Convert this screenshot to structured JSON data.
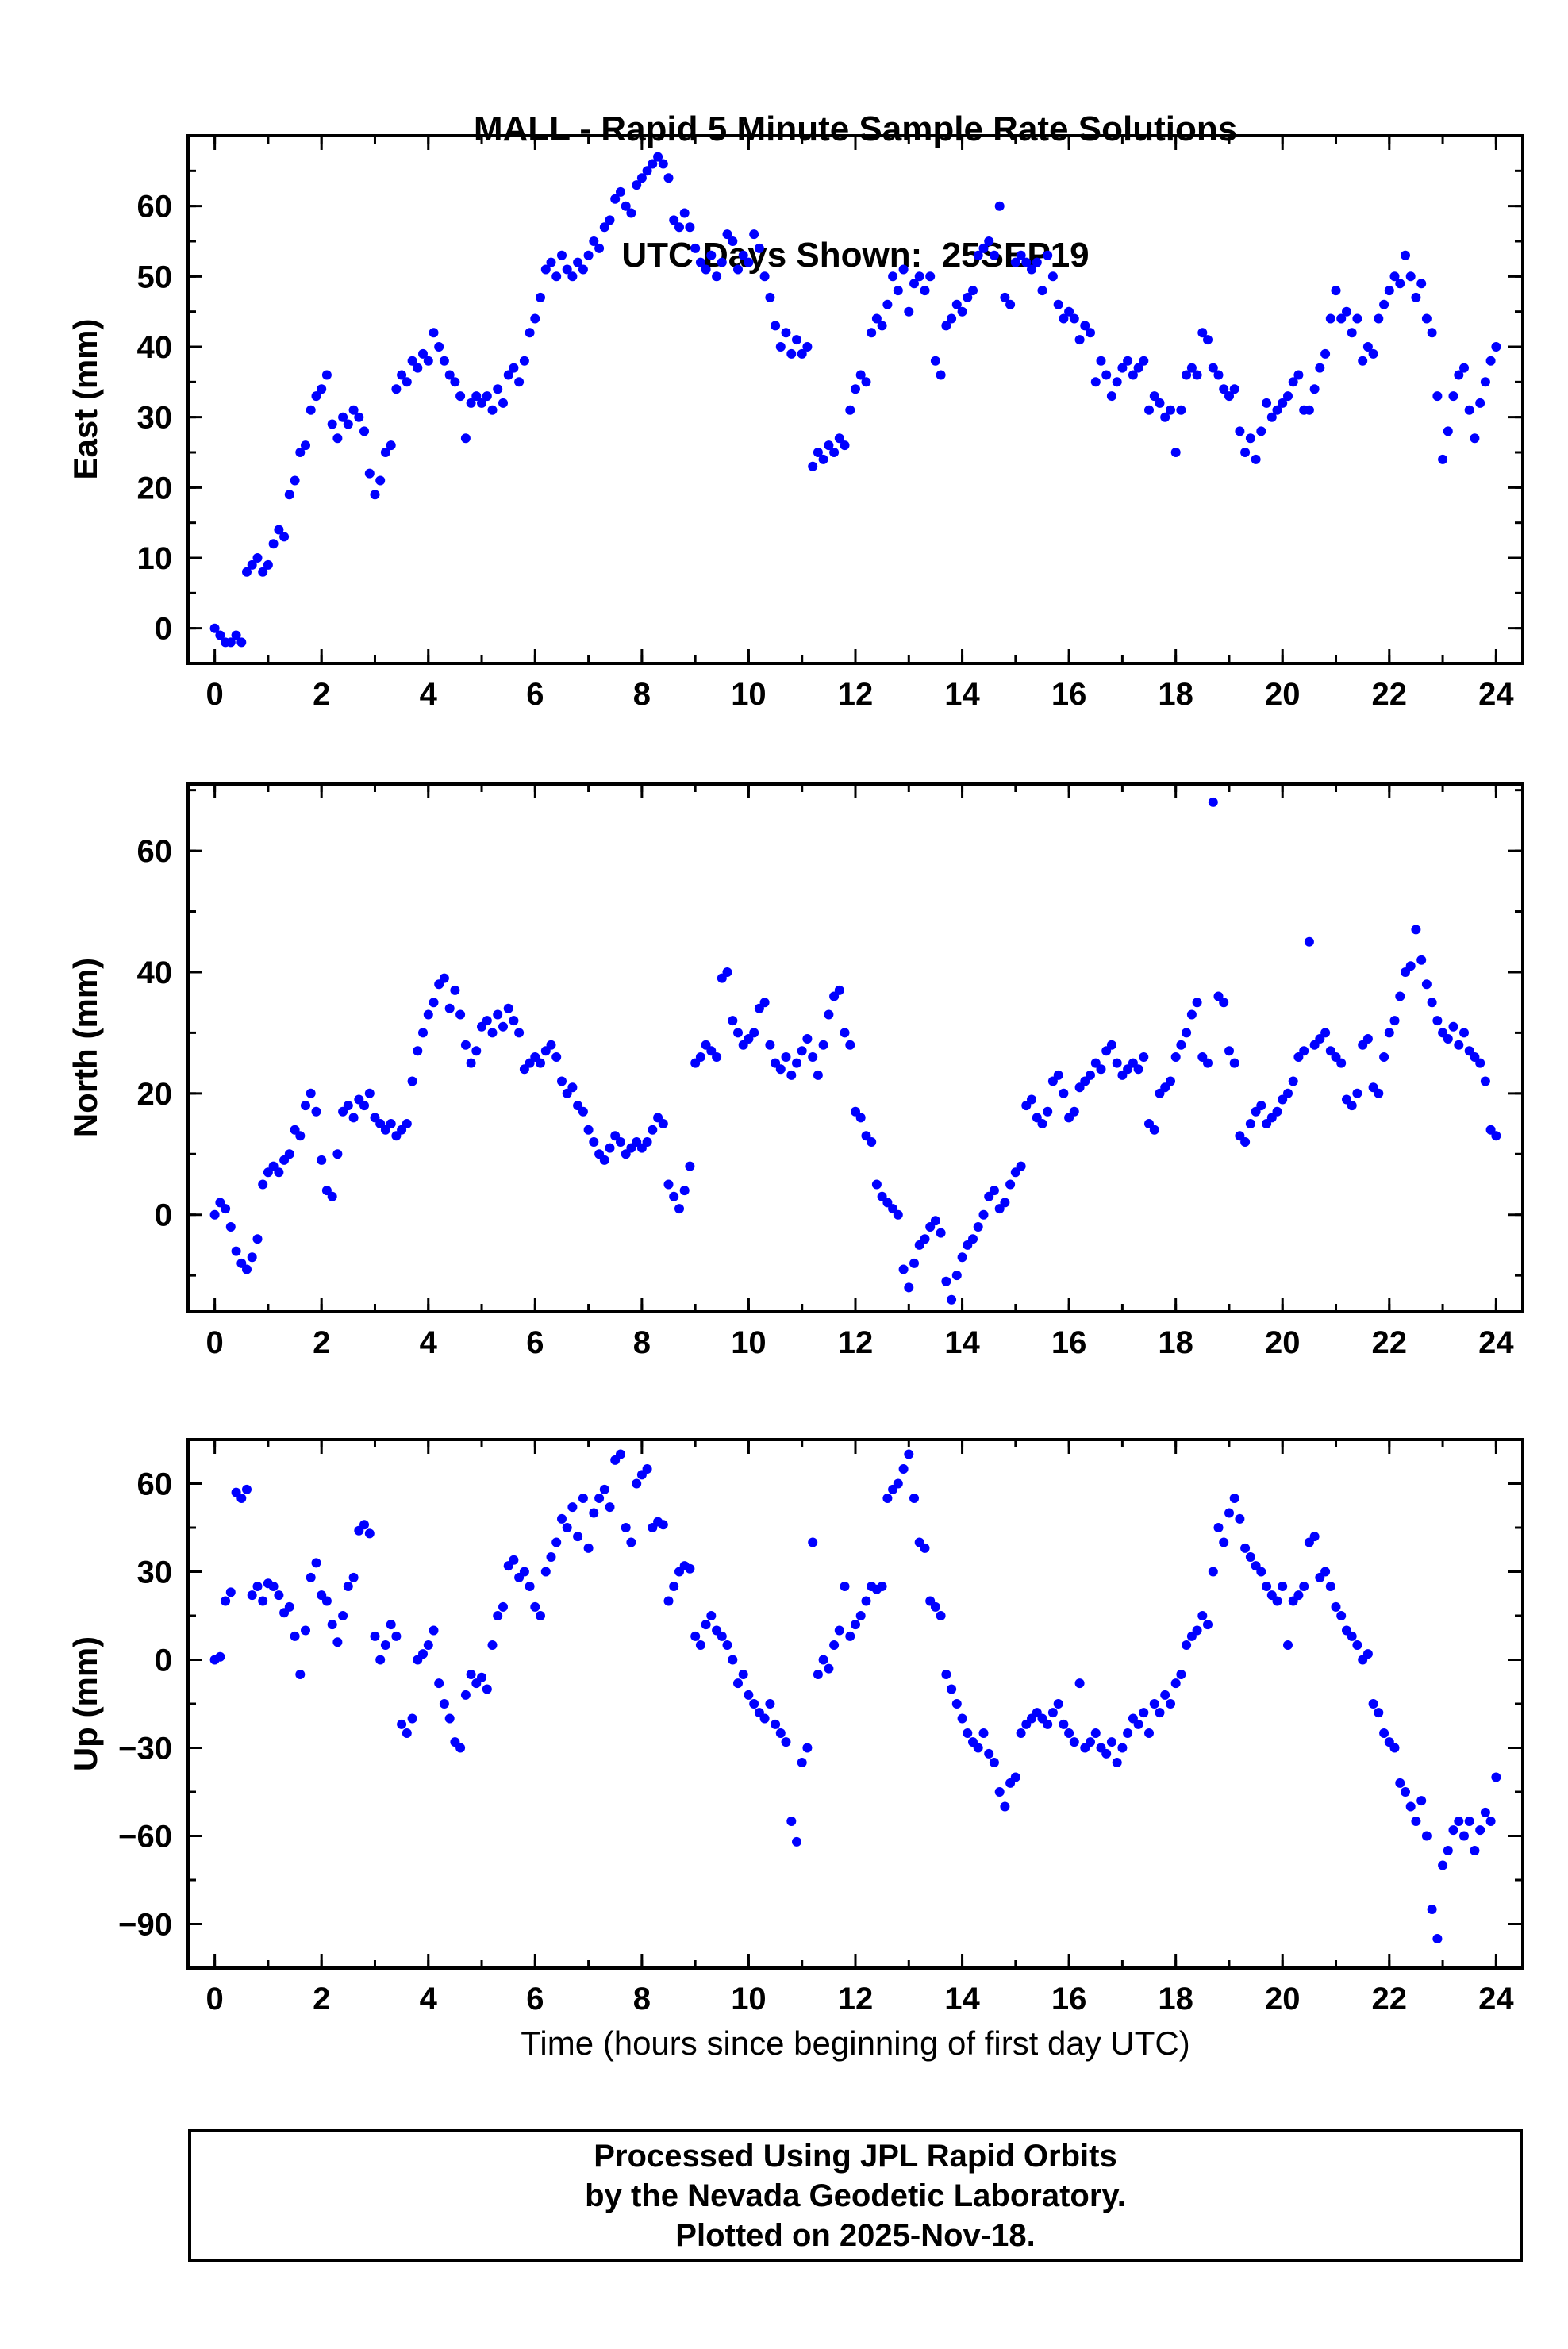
{
  "title": {
    "line1": "MALL - Rapid 5 Minute Sample Rate Solutions",
    "line2": "UTC Days Shown:  25SEP19"
  },
  "xlabel": "Time (hours since beginning of first day UTC)",
  "footer": {
    "line1": "Processed Using JPL Rapid Orbits",
    "line2": "by the Nevada Geodetic Laboratory.",
    "line3": "Plotted on 2025-Nov-18."
  },
  "colors": {
    "marker": "#0000ff",
    "axis": "#000000"
  },
  "chart_data": [
    {
      "type": "scatter",
      "name": "east",
      "ylabel": "East (mm)",
      "xlim": [
        -0.5,
        24.5
      ],
      "ylim": [
        -5,
        70
      ],
      "xticks": [
        0,
        2,
        4,
        6,
        8,
        10,
        12,
        14,
        16,
        18,
        20,
        22,
        24
      ],
      "yticks": [
        0,
        10,
        20,
        30,
        40,
        50,
        60
      ],
      "xtick_minor_step": 1,
      "ytick_minor_step": 5,
      "x_start": 0,
      "x_step": 0.1,
      "values": [
        0,
        -1,
        -2,
        -2,
        -1,
        -2,
        8,
        9,
        10,
        8,
        9,
        12,
        14,
        13,
        19,
        21,
        25,
        26,
        31,
        33,
        34,
        36,
        29,
        27,
        30,
        29,
        31,
        30,
        28,
        22,
        19,
        21,
        25,
        26,
        34,
        36,
        35,
        38,
        37,
        39,
        38,
        42,
        40,
        38,
        36,
        35,
        33,
        27,
        32,
        33,
        32,
        33,
        31,
        34,
        32,
        36,
        37,
        35,
        38,
        42,
        44,
        47,
        51,
        52,
        50,
        53,
        51,
        50,
        52,
        51,
        53,
        55,
        54,
        57,
        58,
        61,
        62,
        60,
        59,
        63,
        64,
        65,
        66,
        67,
        66,
        64,
        58,
        57,
        59,
        57,
        54,
        52,
        51,
        53,
        50,
        52,
        56,
        55,
        51,
        53,
        52,
        56,
        54,
        50,
        47,
        43,
        40,
        42,
        39,
        41,
        39,
        40,
        23,
        25,
        24,
        26,
        25,
        27,
        26,
        31,
        34,
        36,
        35,
        42,
        44,
        43,
        46,
        50,
        48,
        51,
        45,
        49,
        50,
        48,
        50,
        38,
        36,
        43,
        44,
        46,
        45,
        47,
        48,
        53,
        54,
        55,
        53,
        60,
        47,
        46,
        52,
        53,
        52,
        51,
        52,
        48,
        53,
        50,
        46,
        44,
        45,
        44,
        41,
        43,
        42,
        35,
        38,
        36,
        33,
        35,
        37,
        38,
        36,
        37,
        38,
        31,
        33,
        32,
        30,
        31,
        25,
        31,
        36,
        37,
        36,
        42,
        41,
        37,
        36,
        34,
        33,
        34,
        28,
        25,
        27,
        24,
        28,
        32,
        30,
        31,
        32,
        33,
        35,
        36,
        31,
        31,
        34,
        37,
        39,
        44,
        48,
        44,
        45,
        42,
        44,
        38,
        40,
        39,
        44,
        46,
        48,
        50,
        49,
        53,
        50,
        47,
        49,
        44,
        42,
        33,
        24,
        28,
        33,
        36,
        37,
        31,
        27,
        32,
        35,
        38,
        40
      ]
    },
    {
      "type": "scatter",
      "name": "north",
      "ylabel": "North (mm)",
      "xlim": [
        -0.5,
        24.5
      ],
      "ylim": [
        -16,
        71
      ],
      "xticks": [
        0,
        2,
        4,
        6,
        8,
        10,
        12,
        14,
        16,
        18,
        20,
        22,
        24
      ],
      "yticks": [
        0,
        20,
        40,
        60
      ],
      "xtick_minor_step": 1,
      "ytick_minor_step": 10,
      "x_start": 0,
      "x_step": 0.1,
      "values": [
        0,
        2,
        1,
        -2,
        -6,
        -8,
        -9,
        -7,
        -4,
        5,
        7,
        8,
        7,
        9,
        10,
        14,
        13,
        18,
        20,
        17,
        9,
        4,
        3,
        10,
        17,
        18,
        16,
        19,
        18,
        20,
        16,
        15,
        14,
        15,
        13,
        14,
        15,
        22,
        27,
        30,
        33,
        35,
        38,
        39,
        34,
        37,
        33,
        28,
        25,
        27,
        31,
        32,
        30,
        33,
        31,
        34,
        32,
        30,
        24,
        25,
        26,
        25,
        27,
        28,
        26,
        22,
        20,
        21,
        18,
        17,
        14,
        12,
        10,
        9,
        11,
        13,
        12,
        10,
        11,
        12,
        11,
        12,
        14,
        16,
        15,
        5,
        3,
        1,
        4,
        8,
        25,
        26,
        28,
        27,
        26,
        39,
        40,
        32,
        30,
        28,
        29,
        30,
        34,
        35,
        28,
        25,
        24,
        26,
        23,
        25,
        27,
        29,
        26,
        23,
        28,
        33,
        36,
        37,
        30,
        28,
        17,
        16,
        13,
        12,
        5,
        3,
        2,
        1,
        0,
        -9,
        -12,
        -8,
        -5,
        -4,
        -2,
        -1,
        -3,
        -11,
        -14,
        -10,
        -7,
        -5,
        -4,
        -2,
        0,
        3,
        4,
        1,
        2,
        5,
        7,
        8,
        18,
        19,
        16,
        15,
        17,
        22,
        23,
        20,
        16,
        17,
        21,
        22,
        23,
        25,
        24,
        27,
        28,
        25,
        23,
        24,
        25,
        24,
        26,
        15,
        14,
        20,
        21,
        22,
        26,
        28,
        30,
        33,
        35,
        26,
        25,
        68,
        36,
        35,
        27,
        25,
        13,
        12,
        15,
        17,
        18,
        15,
        16,
        17,
        19,
        20,
        22,
        26,
        27,
        45,
        28,
        29,
        30,
        27,
        26,
        25,
        19,
        18,
        20,
        28,
        29,
        21,
        20,
        26,
        30,
        32,
        36,
        40,
        41,
        47,
        42,
        38,
        35,
        32,
        30,
        29,
        31,
        28,
        30,
        27,
        26,
        25,
        22,
        14,
        13
      ]
    },
    {
      "type": "scatter",
      "name": "up",
      "ylabel": "Up (mm)",
      "xlim": [
        -0.5,
        24.5
      ],
      "ylim": [
        -105,
        75
      ],
      "xticks": [
        0,
        2,
        4,
        6,
        8,
        10,
        12,
        14,
        16,
        18,
        20,
        22,
        24
      ],
      "yticks": [
        -90,
        -60,
        -30,
        0,
        30,
        60
      ],
      "xtick_minor_step": 1,
      "ytick_minor_step": 15,
      "x_start": 0,
      "x_step": 0.1,
      "values": [
        0,
        1,
        20,
        23,
        57,
        55,
        58,
        22,
        25,
        20,
        26,
        25,
        22,
        16,
        18,
        8,
        -5,
        10,
        28,
        33,
        22,
        20,
        12,
        6,
        15,
        25,
        28,
        44,
        46,
        43,
        8,
        0,
        5,
        12,
        8,
        -22,
        -25,
        -20,
        0,
        2,
        5,
        10,
        -8,
        -15,
        -20,
        -28,
        -30,
        -12,
        -5,
        -8,
        -6,
        -10,
        5,
        15,
        18,
        32,
        34,
        28,
        30,
        25,
        18,
        15,
        30,
        35,
        40,
        48,
        45,
        52,
        42,
        55,
        38,
        50,
        55,
        58,
        52,
        68,
        70,
        45,
        40,
        60,
        63,
        65,
        45,
        47,
        46,
        20,
        25,
        30,
        32,
        31,
        8,
        5,
        12,
        15,
        10,
        8,
        5,
        0,
        -8,
        -5,
        -12,
        -15,
        -18,
        -20,
        -15,
        -22,
        -25,
        -28,
        -55,
        -62,
        -35,
        -30,
        40,
        -5,
        0,
        -3,
        5,
        10,
        25,
        8,
        12,
        15,
        20,
        25,
        24,
        25,
        55,
        58,
        60,
        65,
        70,
        55,
        40,
        38,
        20,
        18,
        15,
        -5,
        -10,
        -15,
        -20,
        -25,
        -28,
        -30,
        -25,
        -32,
        -35,
        -45,
        -50,
        -42,
        -40,
        -25,
        -22,
        -20,
        -18,
        -20,
        -22,
        -18,
        -15,
        -22,
        -25,
        -28,
        -8,
        -30,
        -28,
        -25,
        -30,
        -32,
        -28,
        -35,
        -30,
        -25,
        -20,
        -22,
        -18,
        -25,
        -15,
        -18,
        -12,
        -15,
        -8,
        -5,
        5,
        8,
        10,
        15,
        12,
        30,
        45,
        40,
        50,
        55,
        48,
        38,
        35,
        32,
        30,
        25,
        22,
        20,
        25,
        5,
        20,
        22,
        25,
        40,
        42,
        28,
        30,
        25,
        18,
        15,
        10,
        8,
        5,
        0,
        2,
        -15,
        -18,
        -25,
        -28,
        -30,
        -42,
        -45,
        -50,
        -55,
        -48,
        -60,
        -85,
        -95,
        -70,
        -65,
        -58,
        -55,
        -60,
        -55,
        -65,
        -58,
        -52,
        -55,
        -40
      ]
    }
  ]
}
